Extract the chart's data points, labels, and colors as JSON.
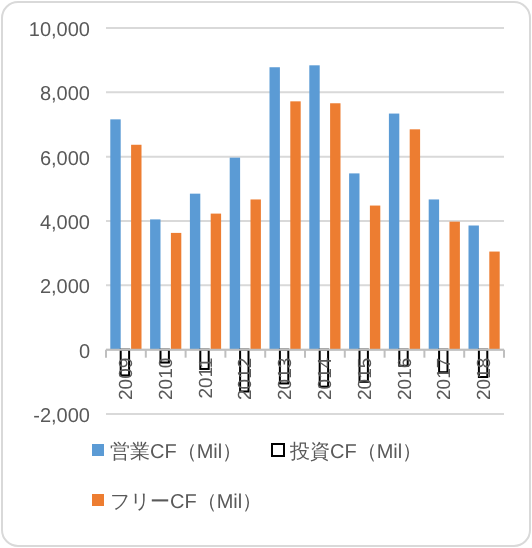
{
  "chart_data": {
    "type": "bar",
    "categories": [
      "2009",
      "2010",
      "2011",
      "2012",
      "2013",
      "2014",
      "2015",
      "2016",
      "2017",
      "2018"
    ],
    "series": [
      {
        "name": "営業CF（Mil）",
        "color": "#5b9bd5",
        "values": [
          7160,
          4050,
          4850,
          5970,
          8780,
          8840,
          5480,
          7340,
          4670,
          3860
        ]
      },
      {
        "name": "投資CF（Mil）",
        "color": "#ffffff",
        "values": [
          -800,
          -400,
          -600,
          -1300,
          -1050,
          -1150,
          -1000,
          -500,
          -700,
          -850
        ]
      },
      {
        "name": "フリーCF（Mil）",
        "color": "#ed7d31",
        "values": [
          6370,
          3630,
          4230,
          4670,
          7720,
          7660,
          4480,
          6850,
          3980,
          3050
        ]
      }
    ],
    "ylim": [
      -2000,
      10000
    ],
    "yticks": [
      {
        "value": -2000,
        "label": "-2,000"
      },
      {
        "value": 0,
        "label": "0"
      },
      {
        "value": 2000,
        "label": "2,000"
      },
      {
        "value": 4000,
        "label": "4,000"
      },
      {
        "value": 6000,
        "label": "6,000"
      },
      {
        "value": 8000,
        "label": "8,000"
      },
      {
        "value": 10000,
        "label": "10,000"
      }
    ],
    "grid": "y",
    "legend": "bottom"
  }
}
